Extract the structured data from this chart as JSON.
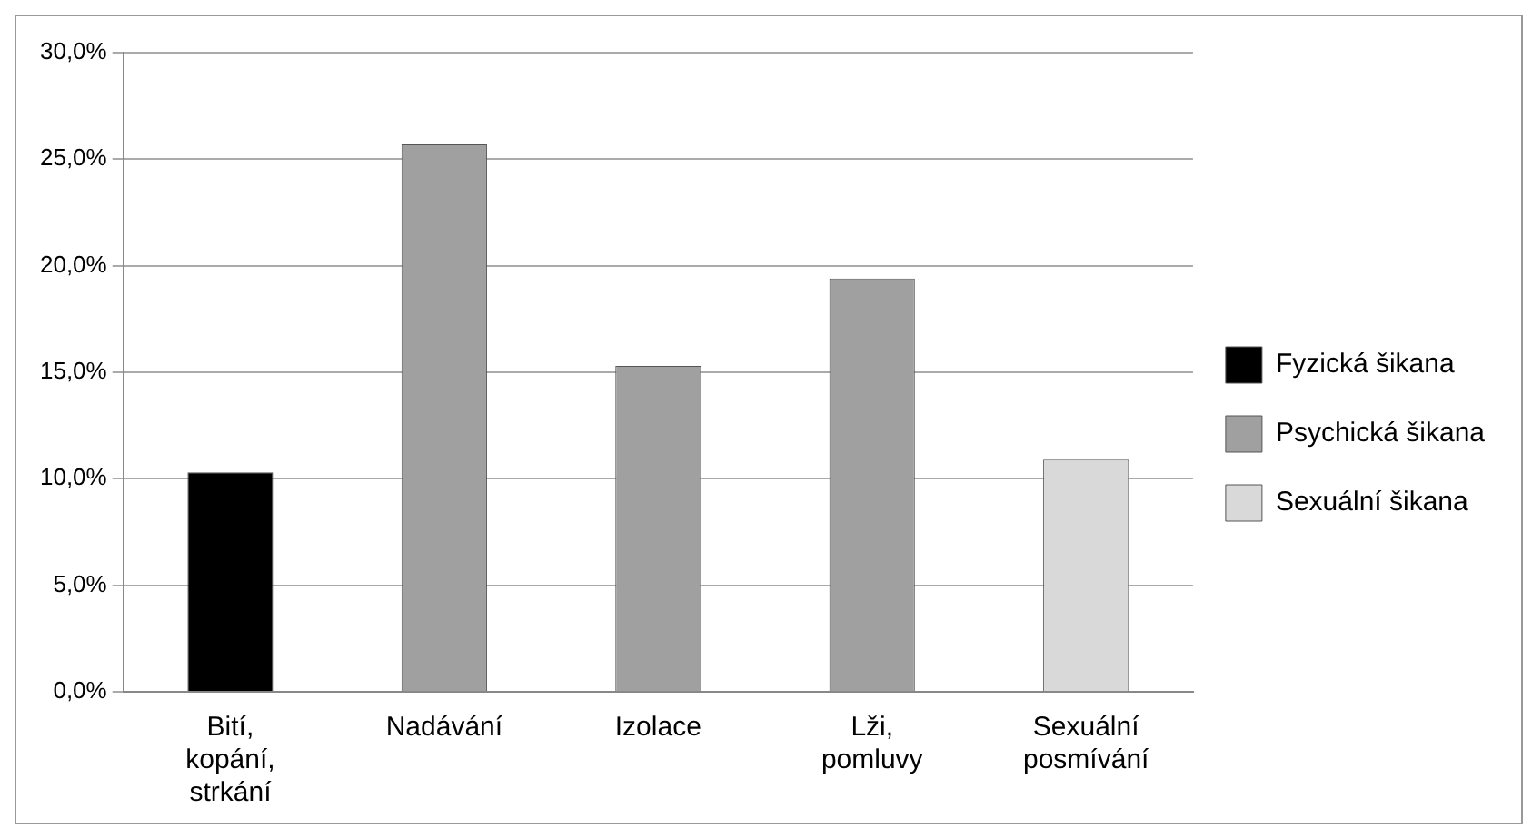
{
  "chart_data": {
    "type": "bar",
    "categories": [
      "Bití, kopání, strkání",
      "Nadávání",
      "Izolace",
      "Lži, pomluvy",
      "Sexuální posmívání"
    ],
    "series": [
      {
        "name": "Fyzická šikana",
        "color": "#000000",
        "values": [
          10.3,
          null,
          null,
          null,
          null
        ]
      },
      {
        "name": "Psychická šikana",
        "color": "#a0a0a0",
        "values": [
          null,
          25.7,
          15.3,
          19.4,
          null
        ]
      },
      {
        "name": "Sexuální šikana",
        "color": "#d9d9d9",
        "values": [
          null,
          null,
          null,
          null,
          10.9
        ]
      }
    ],
    "ylim": [
      0,
      30
    ],
    "yticks": [
      {
        "value": 0,
        "label": "0,0%"
      },
      {
        "value": 5,
        "label": "5,0%"
      },
      {
        "value": 10,
        "label": "10,0%"
      },
      {
        "value": 15,
        "label": "15,0%"
      },
      {
        "value": 20,
        "label": "20,0%"
      },
      {
        "value": 25,
        "label": "25,0%"
      },
      {
        "value": 30,
        "label": "30,0%"
      }
    ],
    "grid": "y",
    "legend": "right"
  }
}
